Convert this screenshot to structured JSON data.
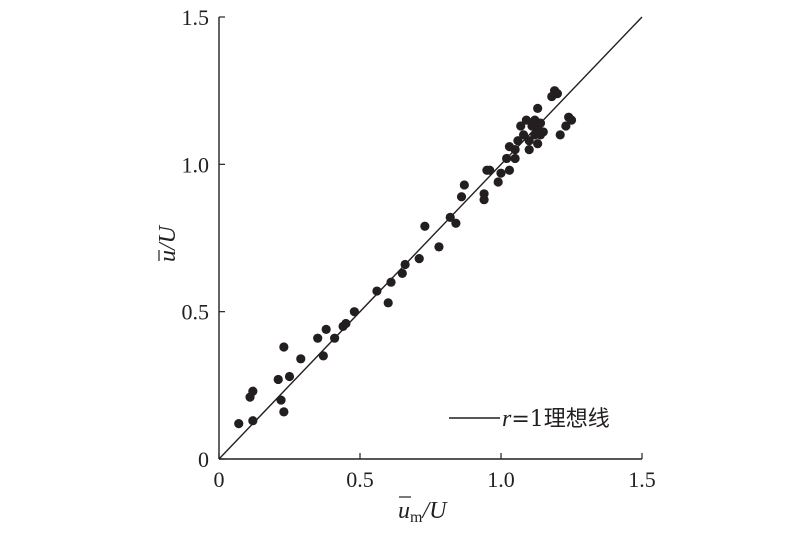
{
  "chart_data": {
    "type": "scatter",
    "xlabel": {
      "symbol": "u",
      "subscript": "m",
      "suffix": "/U"
    },
    "ylabel": {
      "symbol": "u",
      "suffix": "/U"
    },
    "xlim": [
      0,
      1.5
    ],
    "ylim": [
      0,
      1.5
    ],
    "xticks": [
      "0",
      "0.5",
      "1.0",
      "1.5"
    ],
    "yticks": [
      "0",
      "0.5",
      "1.0",
      "1.5"
    ],
    "grid": false,
    "legend_position": "bottom-right",
    "legend": {
      "variable": "r",
      "equals": "=1理想线"
    },
    "ideal_line": {
      "from": [
        0,
        0
      ],
      "to": [
        1.5,
        1.5
      ]
    },
    "colors": {
      "marker": "#231f20",
      "line": "#231f20",
      "axis": "#231f20"
    },
    "points": [
      [
        0.07,
        0.12
      ],
      [
        0.11,
        0.21
      ],
      [
        0.12,
        0.23
      ],
      [
        0.12,
        0.13
      ],
      [
        0.21,
        0.27
      ],
      [
        0.22,
        0.2
      ],
      [
        0.23,
        0.38
      ],
      [
        0.23,
        0.16
      ],
      [
        0.25,
        0.28
      ],
      [
        0.29,
        0.34
      ],
      [
        0.35,
        0.41
      ],
      [
        0.37,
        0.35
      ],
      [
        0.38,
        0.44
      ],
      [
        0.41,
        0.41
      ],
      [
        0.44,
        0.45
      ],
      [
        0.45,
        0.46
      ],
      [
        0.48,
        0.5
      ],
      [
        0.56,
        0.57
      ],
      [
        0.6,
        0.53
      ],
      [
        0.61,
        0.6
      ],
      [
        0.65,
        0.63
      ],
      [
        0.66,
        0.66
      ],
      [
        0.71,
        0.68
      ],
      [
        0.73,
        0.79
      ],
      [
        0.78,
        0.72
      ],
      [
        0.82,
        0.82
      ],
      [
        0.84,
        0.8
      ],
      [
        0.86,
        0.89
      ],
      [
        0.87,
        0.93
      ],
      [
        0.94,
        0.88
      ],
      [
        0.94,
        0.9
      ],
      [
        0.95,
        0.98
      ],
      [
        0.96,
        0.98
      ],
      [
        0.99,
        0.94
      ],
      [
        1.0,
        0.97
      ],
      [
        1.02,
        1.02
      ],
      [
        1.03,
        1.06
      ],
      [
        1.03,
        0.98
      ],
      [
        1.05,
        1.02
      ],
      [
        1.05,
        1.05
      ],
      [
        1.06,
        1.08
      ],
      [
        1.07,
        1.13
      ],
      [
        1.08,
        1.1
      ],
      [
        1.09,
        1.15
      ],
      [
        1.1,
        1.05
      ],
      [
        1.1,
        1.08
      ],
      [
        1.11,
        1.13
      ],
      [
        1.12,
        1.1
      ],
      [
        1.12,
        1.15
      ],
      [
        1.13,
        1.12
      ],
      [
        1.13,
        1.19
      ],
      [
        1.13,
        1.07
      ],
      [
        1.14,
        1.14
      ],
      [
        1.14,
        1.1
      ],
      [
        1.15,
        1.11
      ],
      [
        1.18,
        1.23
      ],
      [
        1.19,
        1.25
      ],
      [
        1.2,
        1.24
      ],
      [
        1.21,
        1.1
      ],
      [
        1.23,
        1.13
      ],
      [
        1.24,
        1.16
      ],
      [
        1.25,
        1.15
      ]
    ]
  }
}
